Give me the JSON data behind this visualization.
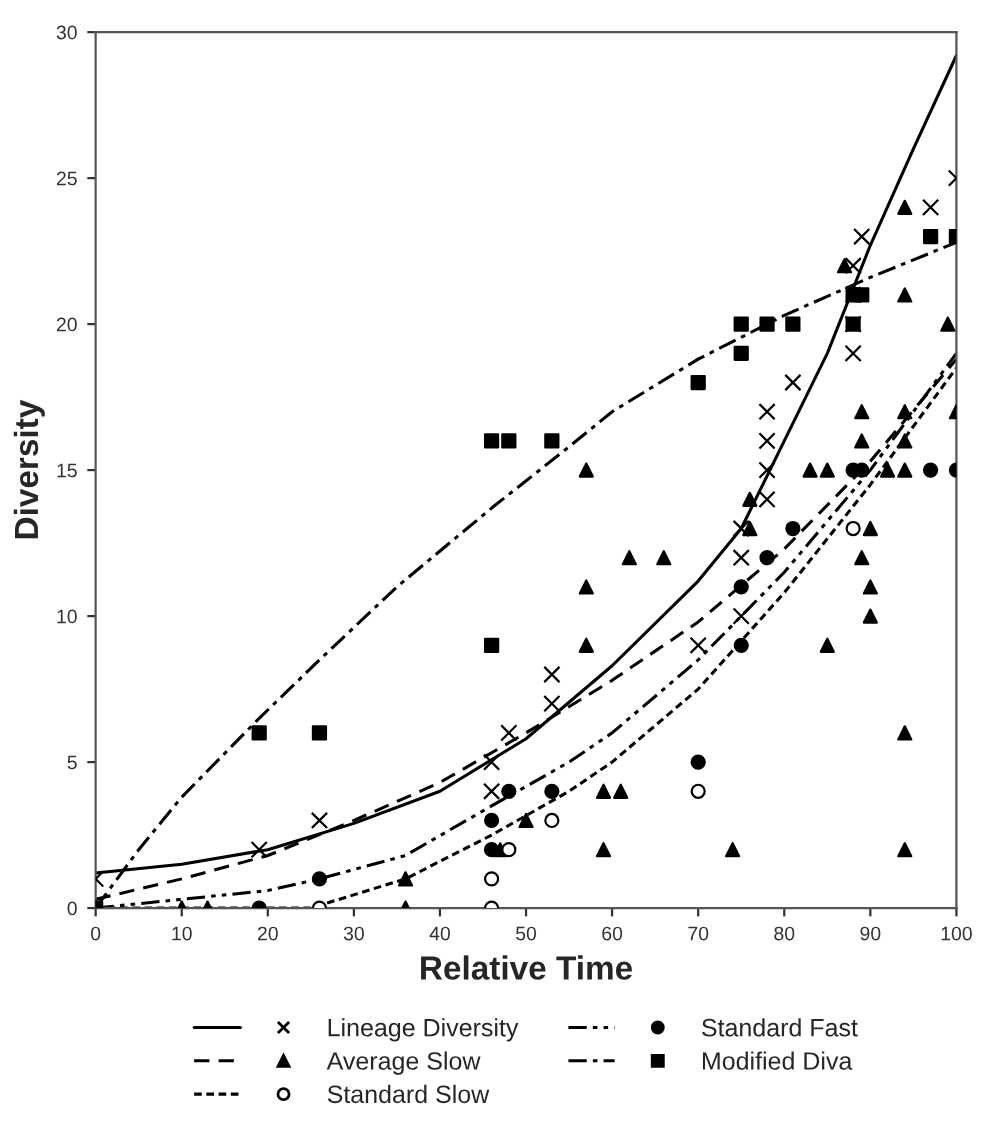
{
  "chart_data": {
    "type": "scatter",
    "xlabel": "Relative Time",
    "ylabel": "Diversity",
    "xlim": [
      0,
      100
    ],
    "ylim": [
      0,
      30
    ],
    "xticks": [
      0,
      10,
      20,
      30,
      40,
      50,
      60,
      70,
      80,
      90,
      100
    ],
    "yticks": [
      0,
      5,
      10,
      15,
      20,
      25,
      30
    ],
    "grid": false,
    "legend": "bottom",
    "series": [
      {
        "name": "Lineage Diversity",
        "color": "#000000",
        "marker": "cross",
        "x": [
          0,
          19,
          26,
          46,
          46,
          48,
          53,
          53,
          70,
          75,
          75,
          75,
          78,
          78,
          78,
          78,
          81,
          88,
          88,
          88,
          88,
          89,
          97,
          100
        ],
        "values": [
          1,
          2,
          3,
          5,
          4,
          6,
          8,
          7,
          9,
          10,
          12,
          13,
          14,
          15,
          16,
          17,
          18,
          19,
          20,
          21,
          22,
          23,
          24,
          25
        ]
      },
      {
        "type": "line",
        "color": "#000000",
        "line_style": "solid",
        "x": [
          0,
          10,
          20,
          30,
          40,
          50,
          60,
          70,
          75,
          80,
          85,
          90,
          95,
          100
        ],
        "values": [
          1.2,
          1.5,
          2.0,
          2.9,
          4.0,
          5.8,
          8.3,
          11.2,
          13,
          16,
          19,
          22.7,
          26,
          29.2
        ]
      },
      {
        "name": "Average Slow",
        "color": "#000000",
        "marker": "triangle",
        "x": [
          10,
          13,
          36,
          36,
          47,
          50,
          59,
          61,
          59,
          74,
          94,
          94,
          57,
          85,
          57,
          62,
          66,
          57,
          76,
          76,
          83,
          85,
          92,
          94,
          90,
          89,
          90,
          90,
          94,
          94,
          87,
          99,
          89,
          89,
          94,
          94,
          100
        ],
        "values": [
          0,
          0,
          0,
          1,
          2,
          3,
          4,
          4,
          2,
          2,
          2,
          6,
          9,
          9,
          11,
          12,
          12,
          15,
          14,
          13,
          15,
          15,
          15,
          15,
          13,
          12,
          11,
          10,
          21,
          24,
          22,
          20,
          17,
          16,
          17,
          16,
          17
        ]
      },
      {
        "type": "line",
        "color": "#000000",
        "line_style": "dashed",
        "x": [
          0,
          10,
          20,
          30,
          40,
          50,
          60,
          70,
          80,
          90,
          100
        ],
        "values": [
          0.3,
          1,
          1.8,
          3,
          4.3,
          6,
          7.8,
          9.8,
          12.3,
          15.3,
          18.8
        ]
      },
      {
        "name": "Standard Slow",
        "color": "#ffffff",
        "marker": "circle",
        "x": [
          26,
          46,
          46,
          48,
          53,
          70,
          88
        ],
        "values": [
          0,
          0,
          1,
          2,
          3,
          4,
          13
        ]
      },
      {
        "type": "line",
        "color": "#000000",
        "line_style": "dotted",
        "x": [
          0,
          25,
          36,
          46,
          55,
          60,
          70,
          80,
          90,
          100
        ],
        "values": [
          0,
          0,
          1,
          2.5,
          4,
          5,
          7.5,
          10.8,
          14.5,
          18.5
        ]
      },
      {
        "name": "Standard Fast",
        "color": "#000000",
        "marker": "circle",
        "x": [
          0,
          19,
          26,
          46,
          46,
          48,
          53,
          70,
          75,
          75,
          78,
          81,
          88,
          89,
          97,
          100
        ],
        "values": [
          0,
          0,
          1,
          3,
          2,
          4,
          4,
          5,
          9,
          11,
          12,
          13,
          15,
          15,
          15,
          15
        ]
      },
      {
        "type": "line",
        "color": "#000000",
        "line_style": "dashdotdot",
        "x": [
          0,
          10,
          20,
          26,
          36,
          46,
          55,
          60,
          70,
          80,
          90,
          100
        ],
        "values": [
          0,
          0.3,
          0.6,
          1,
          1.8,
          3.5,
          5,
          6,
          8.5,
          11.5,
          15,
          19
        ]
      },
      {
        "name": "Modified Diva",
        "color": "#000000",
        "marker": "square",
        "x": [
          0,
          19,
          26,
          46,
          46,
          48,
          53,
          70,
          75,
          75,
          78,
          81,
          88,
          88,
          89,
          97,
          100
        ],
        "values": [
          0,
          6,
          6,
          9,
          16,
          16,
          16,
          18,
          19,
          20,
          20,
          20,
          20,
          21,
          21,
          23,
          23
        ]
      },
      {
        "type": "line",
        "color": "#000000",
        "line_style": "dashdot",
        "x": [
          0,
          5,
          10,
          19,
          26,
          35,
          46,
          55,
          60,
          70,
          80,
          90,
          100
        ],
        "values": [
          0,
          2,
          3.8,
          6.5,
          8.5,
          11,
          13.7,
          15.8,
          17,
          18.8,
          20.3,
          21.6,
          22.8
        ]
      }
    ]
  }
}
